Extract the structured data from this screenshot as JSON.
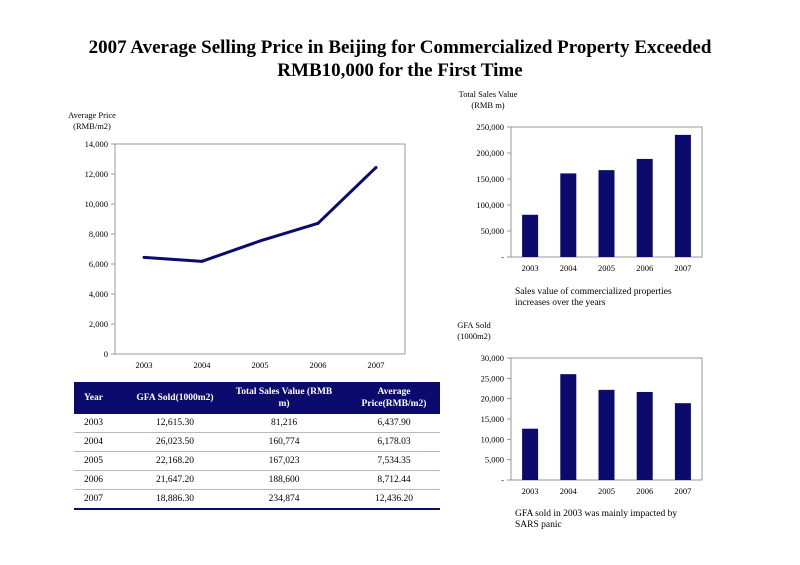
{
  "page": {
    "title_line1": "2007 Average Selling Price in Beijing for Commercialized Property Exceeded",
    "title_line2": "RMB10,000 for the First Time"
  },
  "colors": {
    "navy": "#0b0b6e"
  },
  "chart_data": [
    {
      "id": "avg-price",
      "type": "line",
      "ylabel_lines": [
        "Average Price",
        "(RMB/m2)"
      ],
      "categories": [
        "2003",
        "2004",
        "2005",
        "2006",
        "2007"
      ],
      "values": [
        6437.9,
        6178.03,
        7534.35,
        8712.44,
        12436.2
      ],
      "ylim": [
        0,
        14000
      ],
      "yticks": [
        0,
        2000,
        4000,
        6000,
        8000,
        10000,
        12000,
        14000
      ],
      "ytick_labels": [
        "0",
        "2,000",
        "4,000",
        "6,000",
        "8,000",
        "10,000",
        "12,000",
        "14,000"
      ],
      "grid": false
    },
    {
      "id": "sales-value",
      "type": "bar",
      "ylabel_lines": [
        "Total Sales Value",
        "(RMB m)"
      ],
      "categories": [
        "2003",
        "2004",
        "2005",
        "2006",
        "2007"
      ],
      "values": [
        81216,
        160774,
        167023,
        188600,
        234874
      ],
      "ylim": [
        0,
        250000
      ],
      "yticks": [
        0,
        50000,
        100000,
        150000,
        200000,
        250000
      ],
      "ytick_labels": [
        "-",
        "50,000",
        "100,000",
        "150,000",
        "200,000",
        "250,000"
      ],
      "caption": "Sales value of commercialized properties increases over the years",
      "grid": false
    },
    {
      "id": "gfa-sold",
      "type": "bar",
      "ylabel_lines": [
        "GFA Sold",
        "(1000m2)"
      ],
      "categories": [
        "2003",
        "2004",
        "2005",
        "2006",
        "2007"
      ],
      "values": [
        12615.3,
        26023.5,
        22168.2,
        21647.2,
        18886.3
      ],
      "ylim": [
        0,
        30000
      ],
      "yticks": [
        0,
        5000,
        10000,
        15000,
        20000,
        25000,
        30000
      ],
      "ytick_labels": [
        "-",
        "5,000",
        "10,000",
        "15,000",
        "20,000",
        "25,000",
        "30,000"
      ],
      "caption": "GFA sold in 2003 was mainly impacted by SARS panic",
      "grid": false
    }
  ],
  "table": {
    "headers": [
      "Year",
      "GFA Sold(1000m2)",
      "Total Sales Value (RMB m)",
      "Average Price(RMB/m2)"
    ],
    "rows": [
      [
        "2003",
        "12,615.30",
        "81,216",
        "6,437.90"
      ],
      [
        "2004",
        "26,023.50",
        "160,774",
        "6,178.03"
      ],
      [
        "2005",
        "22,168.20",
        "167,023",
        "7,534.35"
      ],
      [
        "2006",
        "21,647.20",
        "188,600",
        "8,712.44"
      ],
      [
        "2007",
        "18,886.30",
        "234,874",
        "12,436.20"
      ]
    ]
  }
}
